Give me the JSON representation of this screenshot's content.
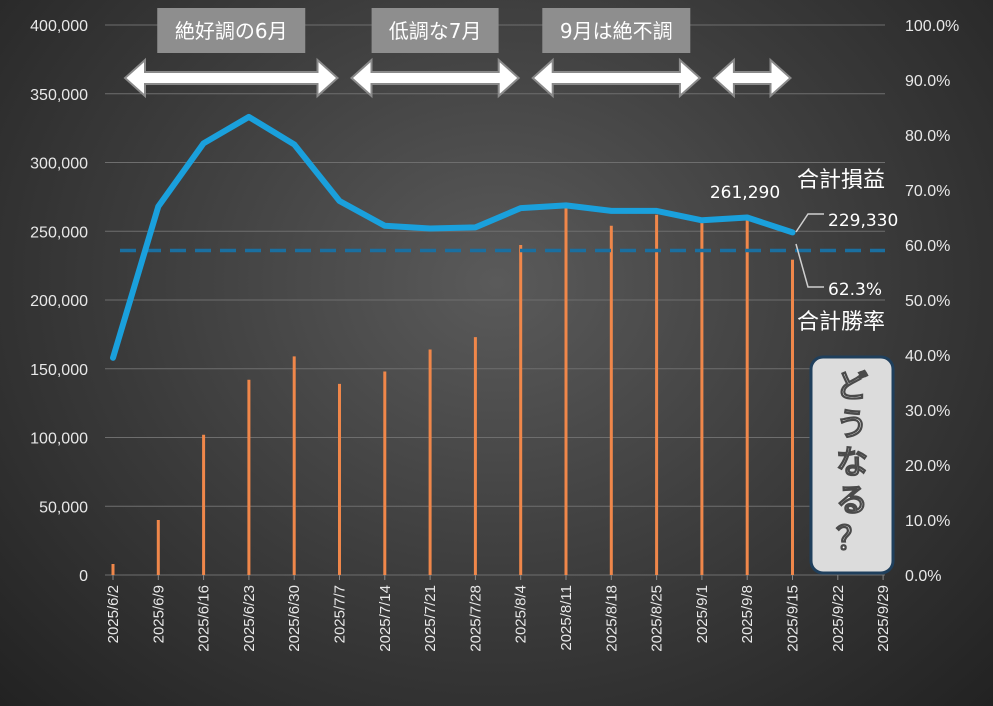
{
  "chart_data": {
    "type": "bar+line",
    "categories": [
      "2025/6/2",
      "2025/6/9",
      "2025/6/16",
      "2025/6/23",
      "2025/6/30",
      "2025/7/7",
      "2025/7/14",
      "2025/7/21",
      "2025/7/28",
      "2025/8/4",
      "2025/8/11",
      "2025/8/18",
      "2025/8/25",
      "2025/9/1",
      "2025/9/8",
      "2025/9/15",
      "2025/9/22",
      "2025/9/29"
    ],
    "left_axis": {
      "ticks": [
        "0",
        "50,000",
        "100,000",
        "150,000",
        "200,000",
        "250,000",
        "300,000",
        "350,000",
        "400,000"
      ],
      "ylim": [
        0,
        400000
      ]
    },
    "right_axis": {
      "ticks": [
        "0.0%",
        "10.0%",
        "20.0%",
        "30.0%",
        "40.0%",
        "50.0%",
        "60.0%",
        "70.0%",
        "80.0%",
        "90.0%",
        "100.0%"
      ],
      "ylim": [
        0,
        100
      ]
    },
    "series": [
      {
        "name": "合計損益",
        "kind": "bar",
        "axis": "left",
        "color": "#f0874a",
        "values": [
          8000,
          40000,
          102000,
          142000,
          159000,
          139000,
          148000,
          164000,
          173000,
          240000,
          268000,
          254000,
          262000,
          256000,
          261290,
          229330,
          null,
          null
        ]
      },
      {
        "name": "合計勝率",
        "kind": "line",
        "axis": "right",
        "color": "#1aa0dc",
        "values": [
          39.5,
          67,
          78.5,
          83.3,
          78.3,
          68,
          63.5,
          63,
          63.2,
          66.7,
          67.2,
          66.2,
          66.2,
          64.5,
          65,
          62.3,
          null,
          null
        ]
      }
    ],
    "reference_line": {
      "axis": "right",
      "value": 59,
      "color": "#1a6fa0",
      "style": "dashed"
    },
    "annotations": [
      {
        "text": "261,290"
      },
      {
        "text": "229,330"
      },
      {
        "text": "62.3%"
      },
      {
        "text": "合計損益"
      },
      {
        "text": "合計勝率"
      }
    ],
    "banners": [
      {
        "text": "絶好調の6月",
        "from": 0,
        "to": 5
      },
      {
        "text": "低調な7月",
        "from": 5,
        "to": 9
      },
      {
        "text": "9月は絶不調",
        "from": 9,
        "to": 13
      },
      {
        "text": "",
        "from": 13,
        "to": 15
      }
    ],
    "callout": {
      "text": "どうなる？"
    }
  }
}
